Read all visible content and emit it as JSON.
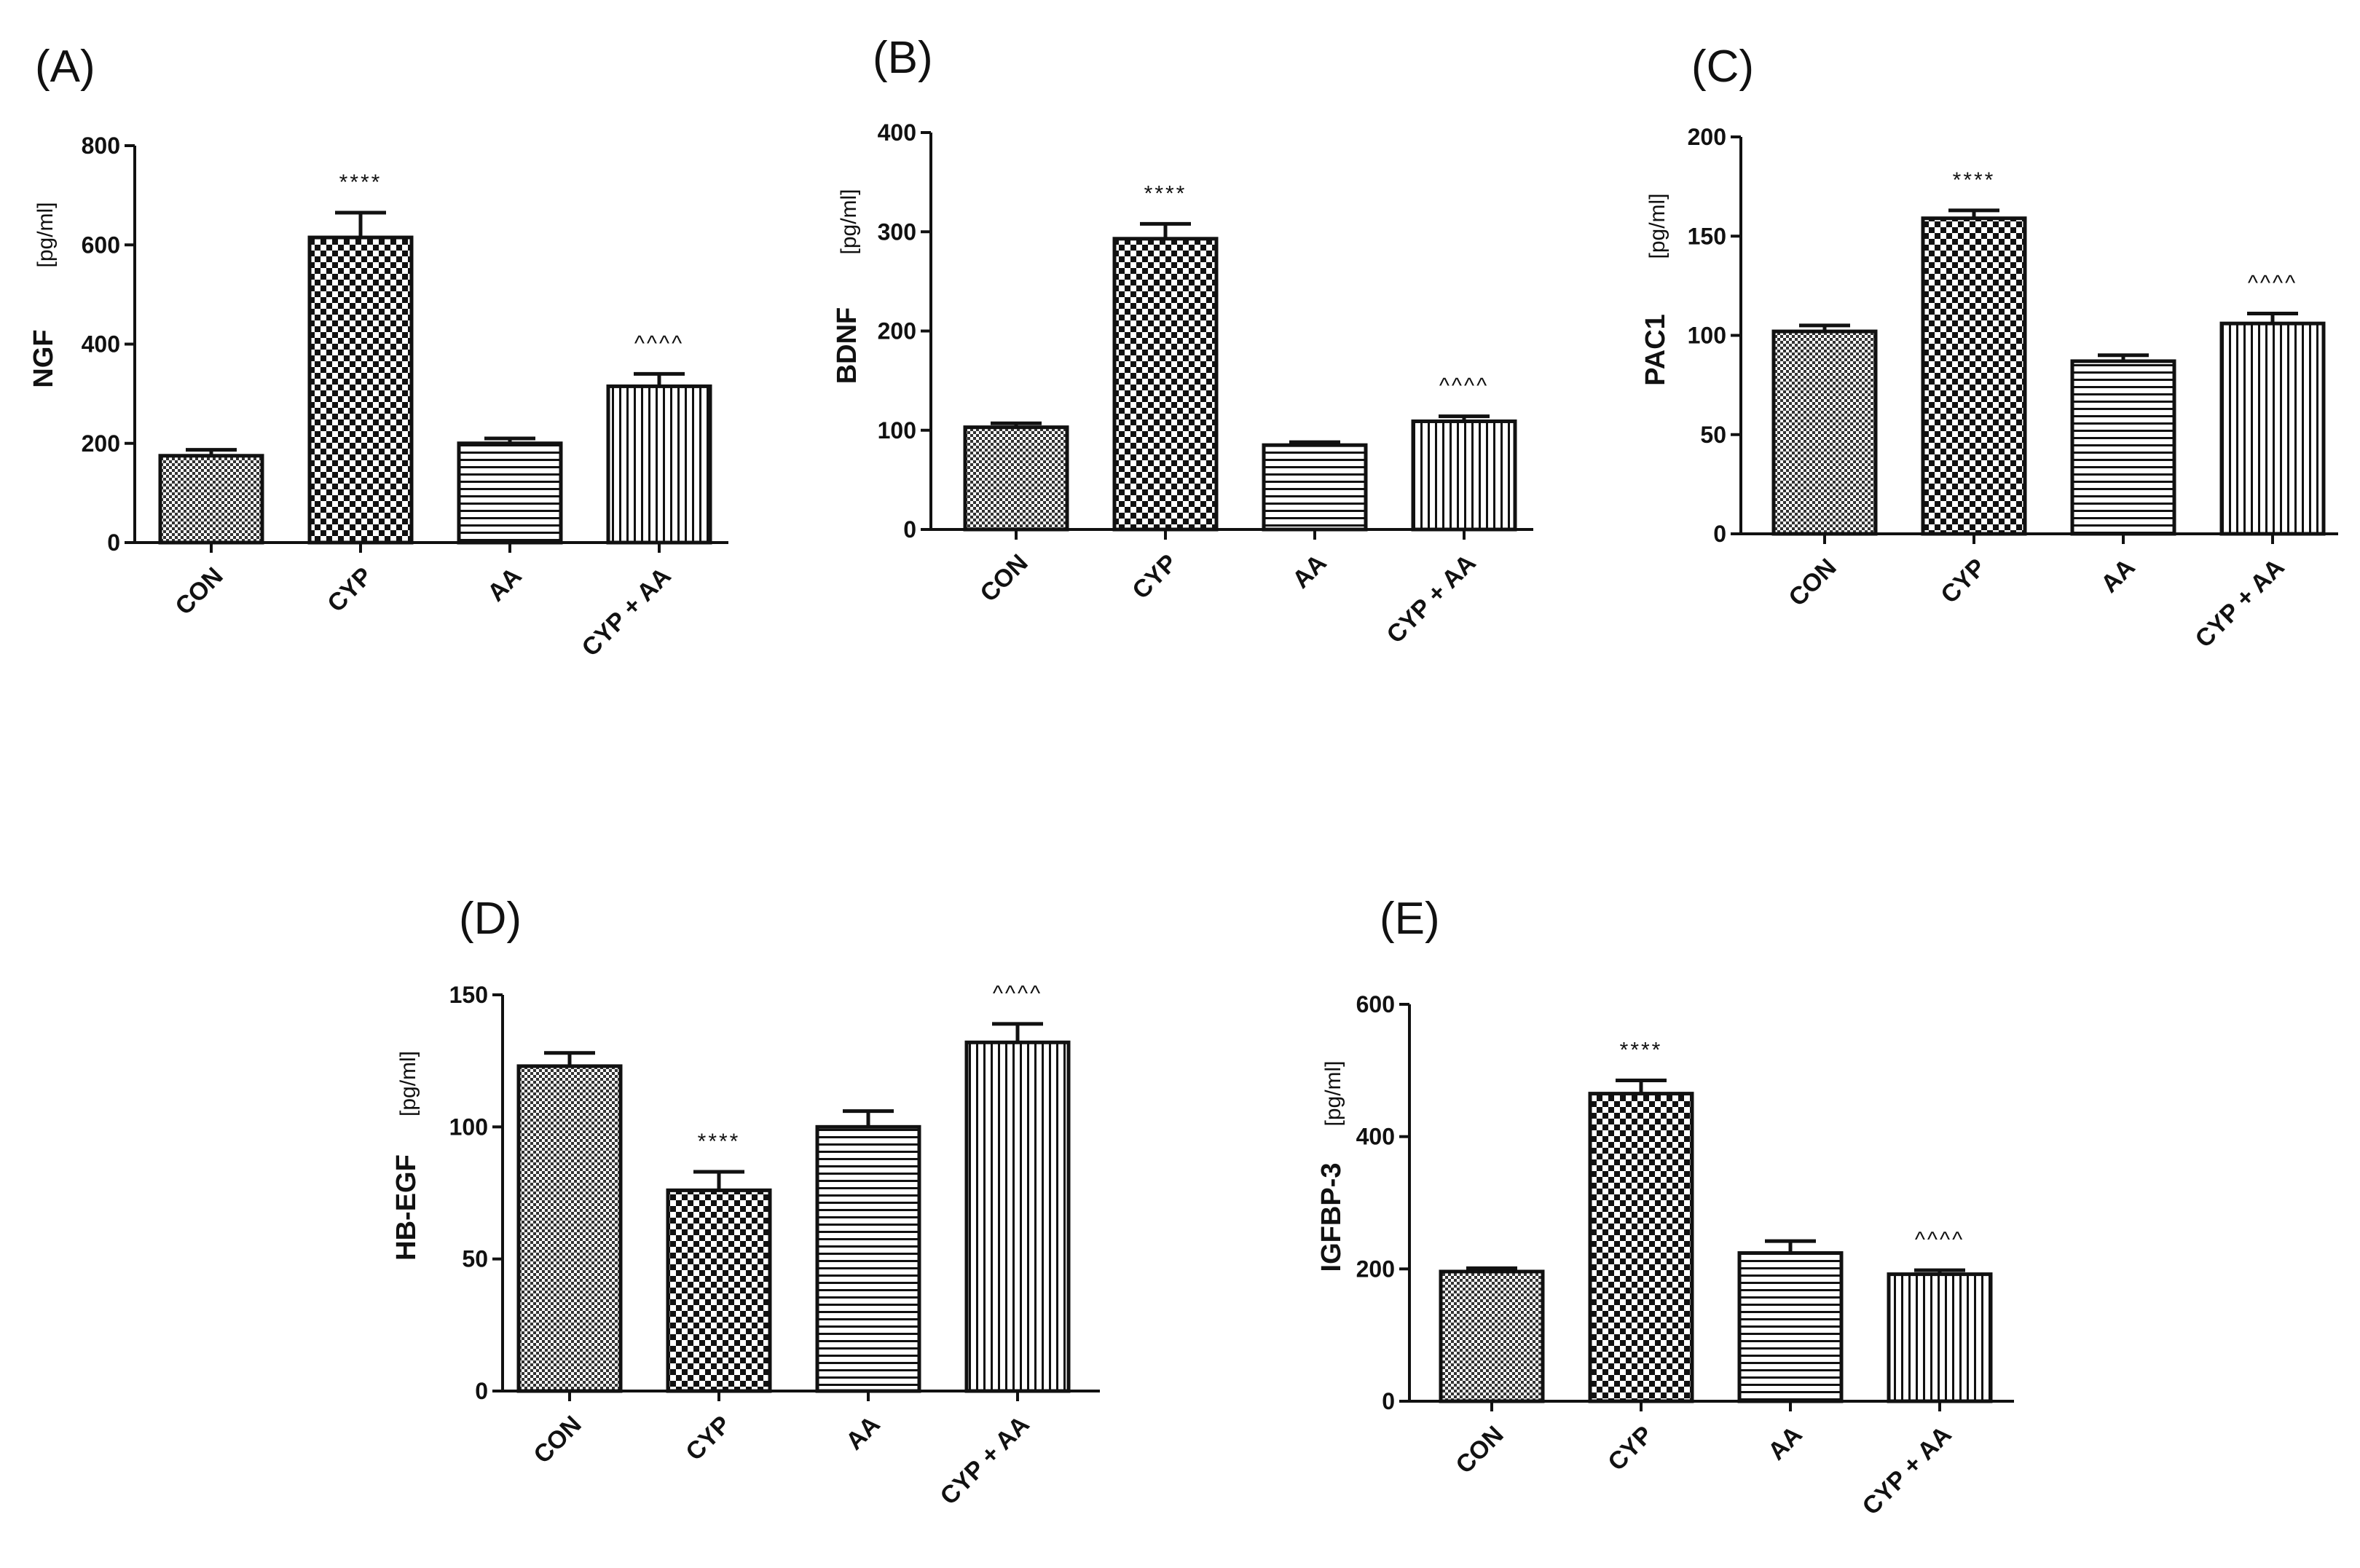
{
  "chart_data": [
    {
      "type": "bar",
      "panel": "(A)",
      "ylabel": "NGF",
      "yunit": "[pg/ml]",
      "categories": [
        "CON",
        "CYP",
        "AA",
        "CYP + AA"
      ],
      "values": [
        175,
        615,
        200,
        315
      ],
      "errors": [
        12,
        50,
        10,
        25
      ],
      "annotations": [
        "",
        "****",
        "",
        "^^^^"
      ],
      "ylim": [
        0,
        800
      ],
      "yticks": [
        0,
        200,
        400,
        600,
        800
      ],
      "ytick_labels": [
        "0",
        "200",
        "400",
        "600",
        "800"
      ]
    },
    {
      "type": "bar",
      "panel": "(B)",
      "ylabel": "BDNF",
      "yunit": "[pg/ml]",
      "categories": [
        "CON",
        "CYP",
        "AA",
        "CYP + AA"
      ],
      "values": [
        103,
        293,
        85,
        109
      ],
      "errors": [
        4,
        15,
        3,
        5
      ],
      "annotations": [
        "",
        "****",
        "",
        "^^^^"
      ],
      "ylim": [
        0,
        400
      ],
      "yticks": [
        0,
        100,
        200,
        300,
        400
      ],
      "ytick_labels": [
        "0",
        "100",
        "200",
        "300",
        "400"
      ]
    },
    {
      "type": "bar",
      "panel": "(C)",
      "ylabel": "PAC1",
      "yunit": "[pg/ml]",
      "categories": [
        "CON",
        "CYP",
        "AA",
        "CYP + AA"
      ],
      "values": [
        102,
        159,
        87,
        106
      ],
      "errors": [
        3,
        4,
        3,
        5
      ],
      "annotations": [
        "",
        "****",
        "",
        "^^^^"
      ],
      "ylim": [
        0,
        200
      ],
      "yticks": [
        0,
        50,
        100,
        150,
        200
      ],
      "ytick_labels": [
        "0",
        "50",
        "100",
        "150",
        "200"
      ]
    },
    {
      "type": "bar",
      "panel": "(D)",
      "ylabel": "HB-EGF",
      "yunit": "[pg/ml]",
      "categories": [
        "CON",
        "CYP",
        "AA",
        "CYP + AA"
      ],
      "values": [
        123,
        76,
        100,
        132
      ],
      "errors": [
        5,
        7,
        6,
        7
      ],
      "annotations": [
        "",
        "****",
        "",
        "^^^^"
      ],
      "ylim": [
        0,
        150
      ],
      "yticks": [
        0,
        50,
        100,
        150
      ],
      "ytick_labels": [
        "0",
        "50",
        "100",
        "150"
      ]
    },
    {
      "type": "bar",
      "panel": "(E)",
      "ylabel": "IGFBP-3",
      "yunit": "[pg/ml]",
      "categories": [
        "CON",
        "CYP",
        "AA",
        "CYP + AA"
      ],
      "values": [
        196,
        465,
        224,
        192
      ],
      "errors": [
        5,
        20,
        18,
        6
      ],
      "annotations": [
        "",
        "****",
        "",
        "^^^^"
      ],
      "ylim": [
        0,
        600
      ],
      "yticks": [
        0,
        200,
        400,
        600
      ],
      "ytick_labels": [
        "0",
        "200",
        "400",
        "600"
      ]
    }
  ]
}
